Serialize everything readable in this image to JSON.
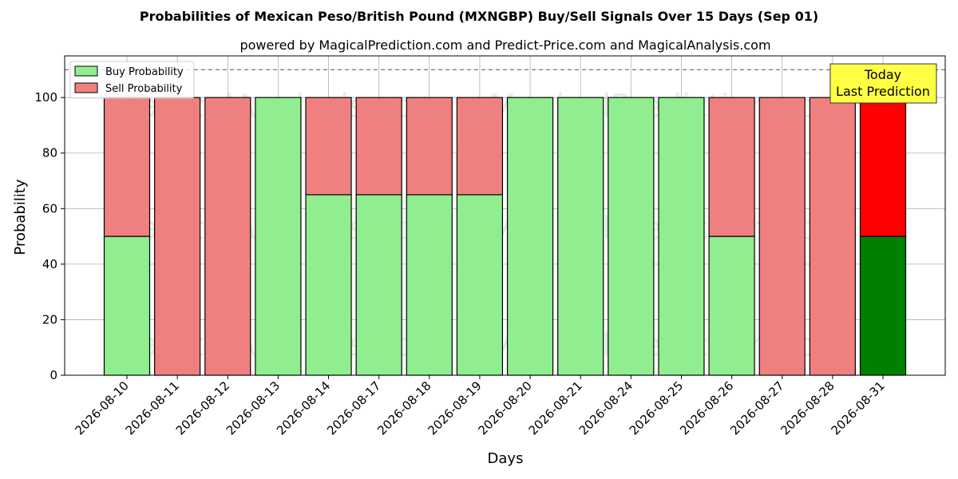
{
  "chart_data": {
    "type": "bar",
    "title": "Probabilities of Mexican Peso/British Pound (MXNGBP) Buy/Sell Signals Over 15 Days (Sep 01)",
    "subtitle": "powered by MagicalPrediction.com and Predict-Price.com and MagicalAnalysis.com",
    "xlabel": "Days",
    "ylabel": "Probability",
    "ylim": [
      0,
      115
    ],
    "yticks": [
      0,
      20,
      40,
      60,
      80,
      100
    ],
    "grid": true,
    "stacked": true,
    "legend_position": "top-left",
    "reference_line": 110,
    "categories": [
      "2026-08-10",
      "2026-08-11",
      "2026-08-12",
      "2026-08-13",
      "2026-08-14",
      "2026-08-17",
      "2026-08-18",
      "2026-08-19",
      "2026-08-20",
      "2026-08-21",
      "2026-08-24",
      "2026-08-25",
      "2026-08-26",
      "2026-08-27",
      "2026-08-28",
      "2026-08-31"
    ],
    "series": [
      {
        "name": "Buy Probability",
        "color": "#90ee90",
        "values": [
          50,
          0,
          0,
          100,
          65,
          65,
          65,
          65,
          100,
          100,
          100,
          100,
          50,
          0,
          0,
          50
        ]
      },
      {
        "name": "Sell Probability",
        "color": "#f08080",
        "values": [
          50,
          100,
          100,
          0,
          35,
          35,
          35,
          35,
          0,
          0,
          0,
          0,
          50,
          100,
          100,
          50
        ]
      }
    ],
    "highlight": {
      "index": 15,
      "buy_color": "#008000",
      "sell_color": "#ff0000"
    },
    "annotation": {
      "lines": [
        "Today",
        "Last Prediction"
      ],
      "background": "#ffff44"
    },
    "watermarks": [
      "MagicalAnalysis.com",
      "MagicalPrediction.com"
    ]
  }
}
